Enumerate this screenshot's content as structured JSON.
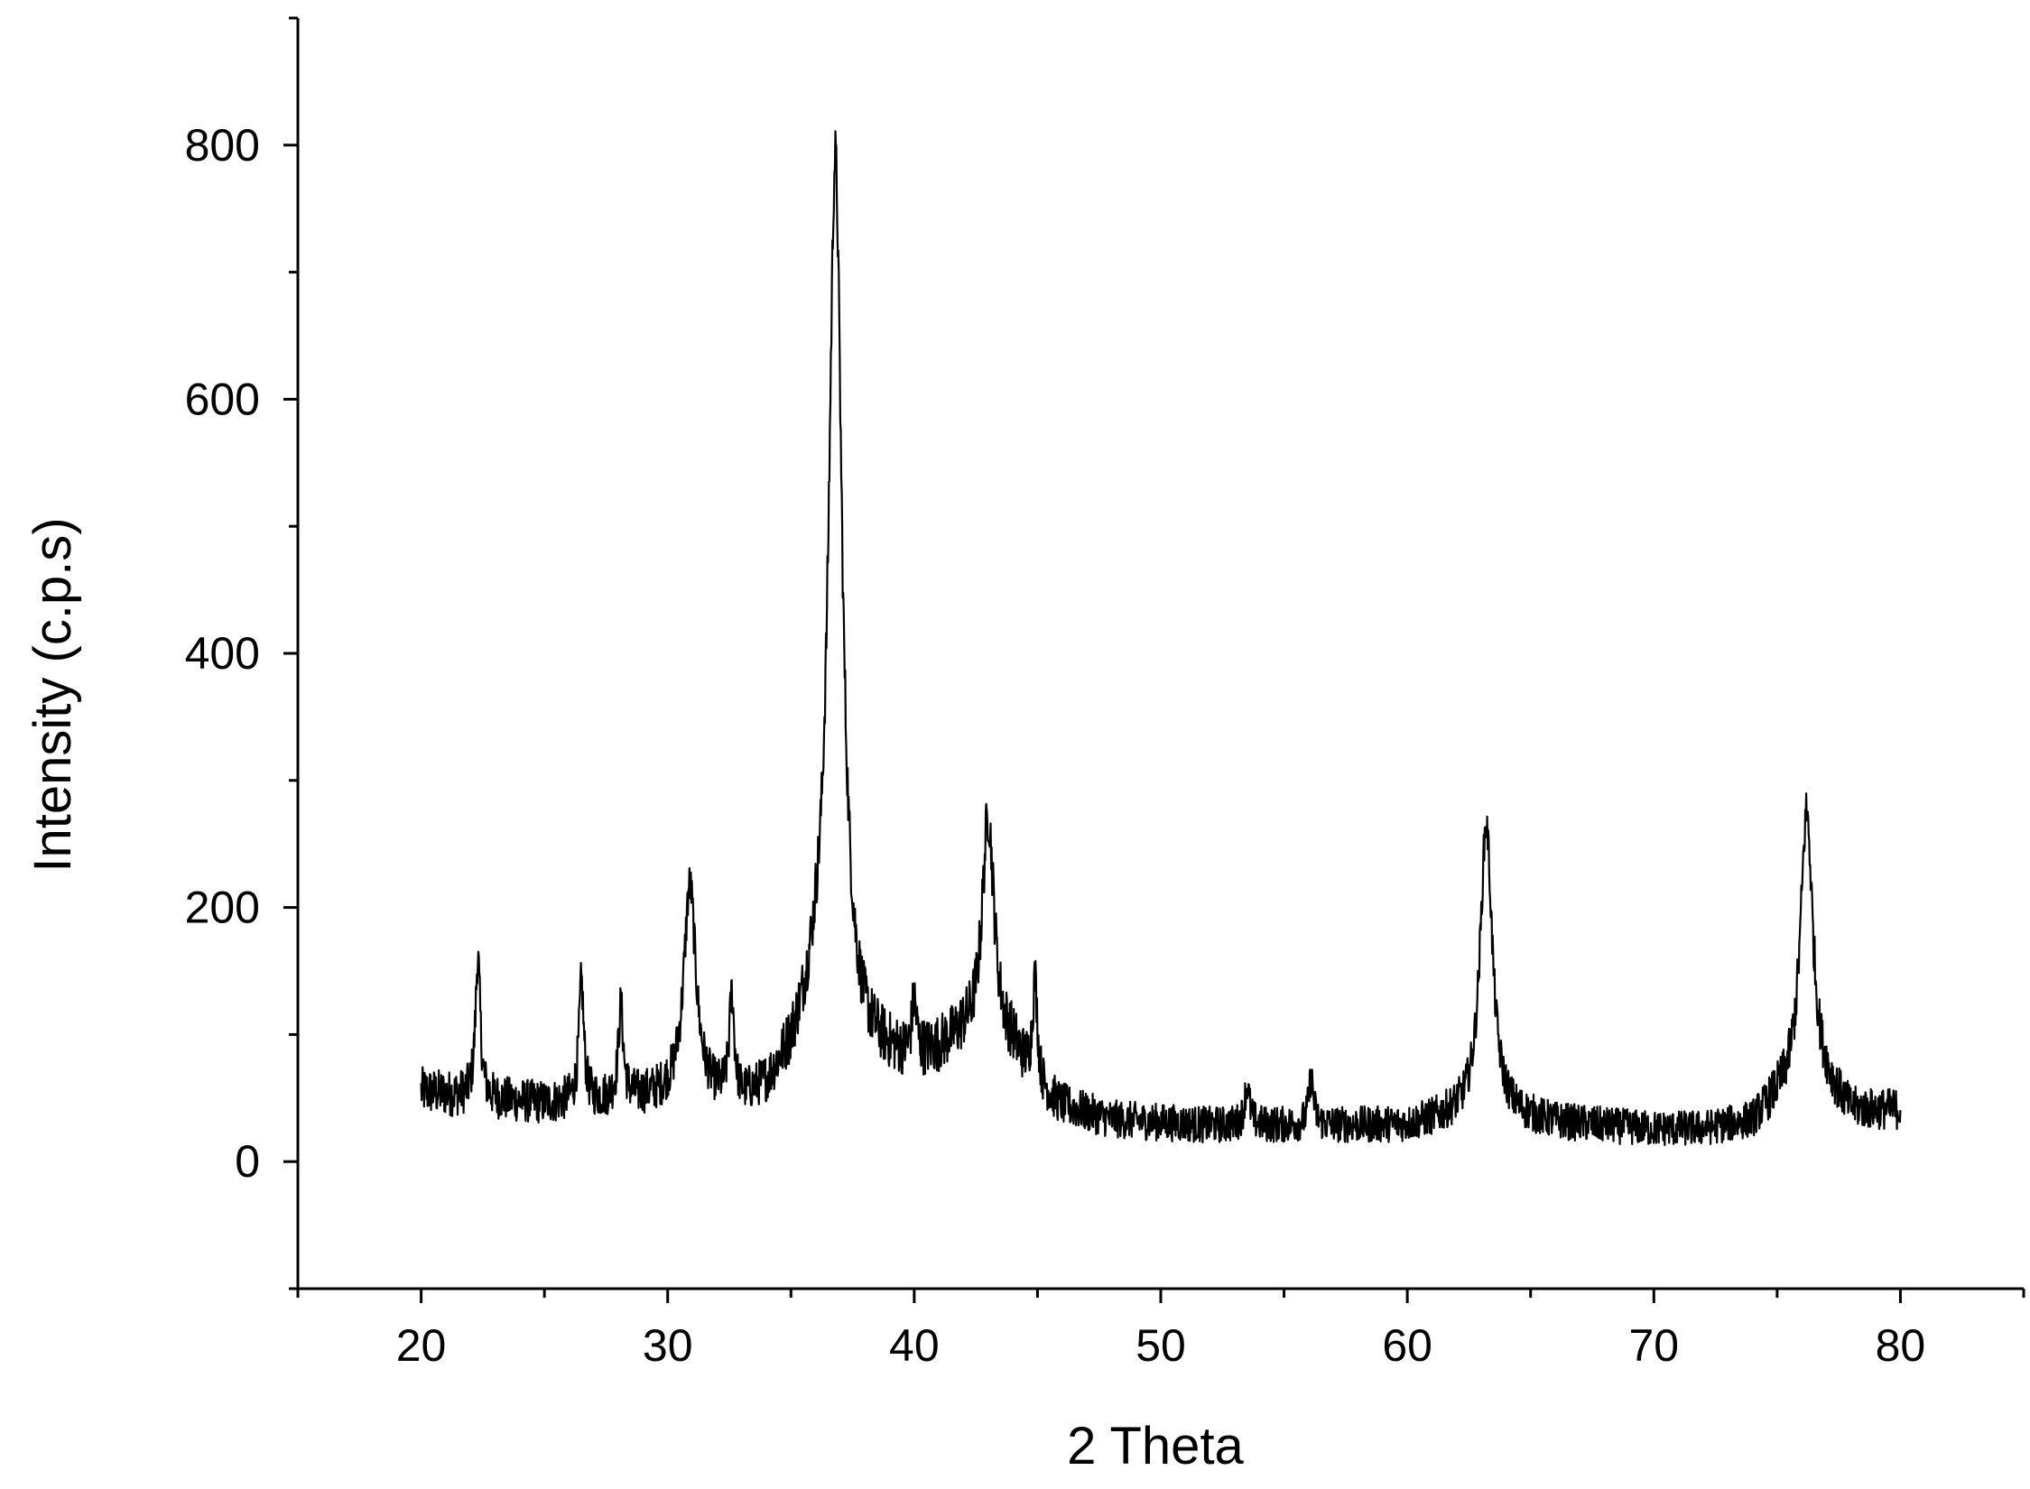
{
  "chart_data": {
    "type": "line",
    "title": "",
    "xlabel": "2 Theta",
    "ylabel": "Intensity (c.p.s)",
    "xlim": [
      15,
      85
    ],
    "ylim": [
      -100,
      900
    ],
    "xticks": [
      20,
      30,
      40,
      50,
      60,
      70,
      80
    ],
    "yticks": [
      0,
      200,
      400,
      600,
      800
    ],
    "x_range": [
      20,
      80
    ],
    "baseline": [
      [
        20,
        55
      ],
      [
        22,
        50
      ],
      [
        25,
        45
      ],
      [
        30,
        50
      ],
      [
        33,
        45
      ],
      [
        34,
        55
      ],
      [
        35,
        80
      ],
      [
        36,
        120
      ],
      [
        38,
        85
      ],
      [
        40,
        75
      ],
      [
        42,
        95
      ],
      [
        44,
        85
      ],
      [
        45,
        55
      ],
      [
        46,
        42
      ],
      [
        48,
        32
      ],
      [
        52,
        28
      ],
      [
        56,
        28
      ],
      [
        60,
        28
      ],
      [
        62,
        35
      ],
      [
        64,
        35
      ],
      [
        66,
        30
      ],
      [
        70,
        25
      ],
      [
        72,
        25
      ],
      [
        74,
        30
      ],
      [
        75,
        48
      ],
      [
        76,
        60
      ],
      [
        77,
        55
      ],
      [
        78,
        38
      ],
      [
        80,
        40
      ]
    ],
    "noise_amplitude": 18,
    "series": [
      {
        "peaks": [
          {
            "x": 22.3,
            "y": 160
          },
          {
            "x": 26.5,
            "y": 140
          },
          {
            "x": 28.1,
            "y": 120
          },
          {
            "x": 30.9,
            "y": 215
          },
          {
            "x": 32.6,
            "y": 125
          },
          {
            "x": 36.8,
            "y": 790
          },
          {
            "x": 40.0,
            "y": 120
          },
          {
            "x": 43.0,
            "y": 270
          },
          {
            "x": 44.9,
            "y": 140
          },
          {
            "x": 53.5,
            "y": 60
          },
          {
            "x": 56.1,
            "y": 65
          },
          {
            "x": 63.2,
            "y": 265
          },
          {
            "x": 76.2,
            "y": 275
          }
        ]
      }
    ]
  }
}
